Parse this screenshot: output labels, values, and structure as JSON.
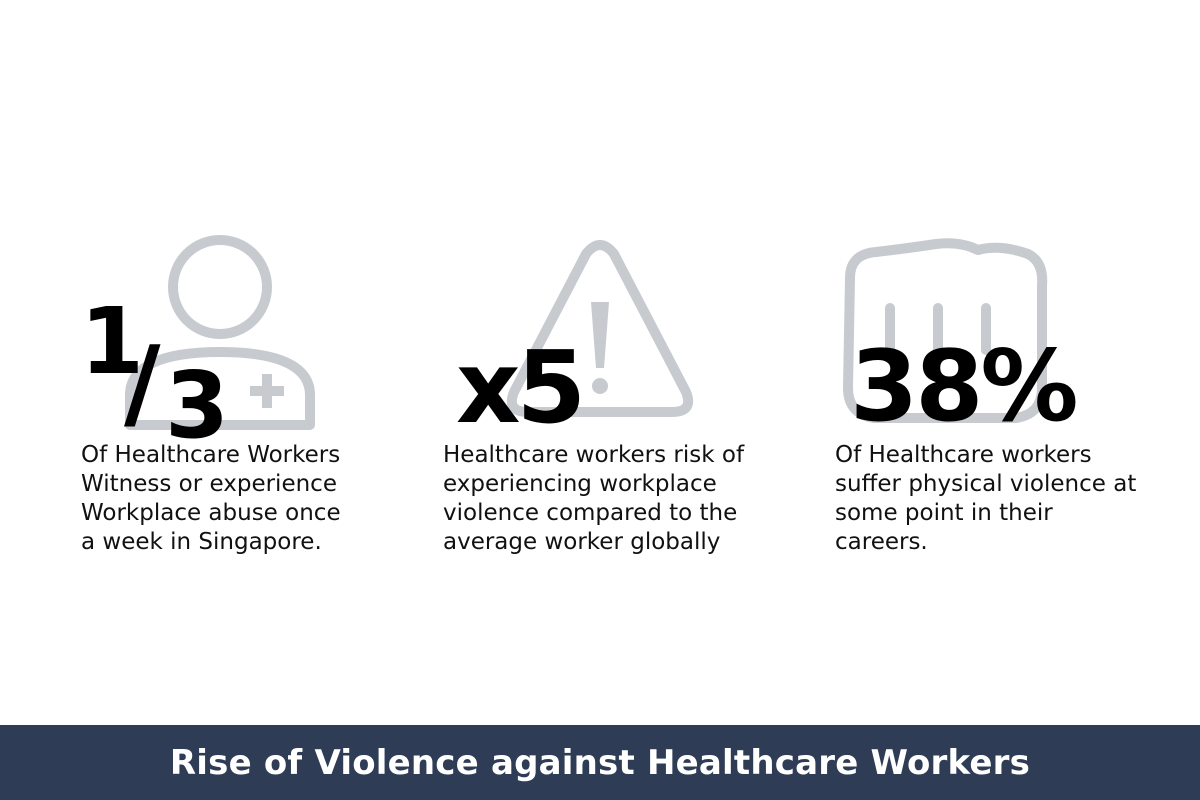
{
  "colors": {
    "icon_gray": "#c7cacf",
    "footer_bg": "#2e3d55",
    "footer_text": "#ffffff",
    "number_text": "#000000"
  },
  "stats": [
    {
      "icon": "healthcare-worker-icon",
      "numerator": "1",
      "denominator": "3",
      "lines": [
        "Of Healthcare Workers",
        "Witness or experience",
        "Workplace abuse once",
        "a week in Singapore."
      ]
    },
    {
      "icon": "warning-triangle-icon",
      "value": "x5",
      "lines": [
        "Healthcare workers risk of",
        "experiencing workplace",
        "violence compared to the",
        "average worker globally"
      ]
    },
    {
      "icon": "fist-icon",
      "value": "38%",
      "lines": [
        "Of Healthcare workers",
        "suffer physical violence at",
        "some point in their",
        "careers."
      ]
    }
  ],
  "footer": {
    "title": "Rise of Violence against Healthcare Workers"
  }
}
